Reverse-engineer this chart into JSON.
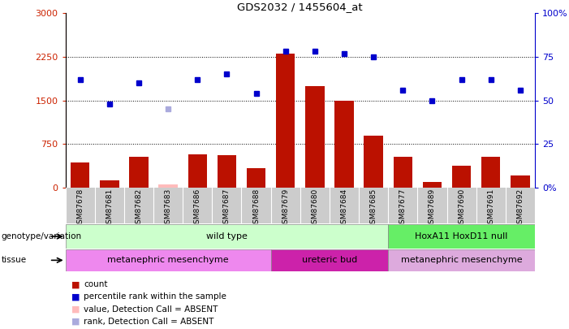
{
  "title": "GDS2032 / 1455604_at",
  "samples": [
    "GSM87678",
    "GSM87681",
    "GSM87682",
    "GSM87683",
    "GSM87686",
    "GSM87687",
    "GSM87688",
    "GSM87679",
    "GSM87680",
    "GSM87684",
    "GSM87685",
    "GSM87677",
    "GSM87689",
    "GSM87690",
    "GSM87691",
    "GSM87692"
  ],
  "counts": [
    430,
    130,
    530,
    60,
    570,
    560,
    330,
    2300,
    1750,
    1490,
    890,
    530,
    100,
    370,
    530,
    210
  ],
  "counts_absent": [
    false,
    false,
    false,
    true,
    false,
    false,
    false,
    false,
    false,
    false,
    false,
    false,
    false,
    false,
    false,
    false
  ],
  "ranks": [
    62,
    48,
    60,
    45,
    62,
    65,
    54,
    78,
    78,
    77,
    75,
    56,
    50,
    62,
    62,
    56
  ],
  "ranks_absent": [
    false,
    false,
    false,
    true,
    false,
    false,
    false,
    false,
    false,
    false,
    false,
    false,
    false,
    false,
    false,
    false
  ],
  "ylim_left": [
    0,
    3000
  ],
  "ylim_right": [
    0,
    100
  ],
  "yticks_left": [
    0,
    750,
    1500,
    2250,
    3000
  ],
  "yticks_right": [
    0,
    25,
    50,
    75,
    100
  ],
  "yticklabels_left": [
    "0",
    "750",
    "1500",
    "2250",
    "3000"
  ],
  "yticklabels_right": [
    "0%",
    "25",
    "50",
    "75",
    "100%"
  ],
  "bar_color": "#bb1100",
  "bar_absent_color": "#ffbbbb",
  "dot_color": "#0000cc",
  "dot_absent_color": "#aaaadd",
  "grid_color": "#000000",
  "col_sep_color": "#ffffff",
  "names_bg": "#cccccc",
  "plot_bg": "#ffffff",
  "genotype_groups": [
    {
      "label": "wild type",
      "start": 0,
      "end": 11,
      "color": "#ccffcc"
    },
    {
      "label": "HoxA11 HoxD11 null",
      "start": 11,
      "end": 16,
      "color": "#66ee66"
    }
  ],
  "tissue_groups": [
    {
      "label": "metanephric mesenchyme",
      "start": 0,
      "end": 7,
      "color": "#ee88ee"
    },
    {
      "label": "ureteric bud",
      "start": 7,
      "end": 11,
      "color": "#dd44bb"
    },
    {
      "label": "metanephric mesenchyme",
      "start": 11,
      "end": 16,
      "color": "#ddaadd"
    }
  ],
  "legend_items": [
    {
      "color": "#bb1100",
      "marker": "s",
      "label": "count"
    },
    {
      "color": "#0000cc",
      "marker": "s",
      "label": "percentile rank within the sample"
    },
    {
      "color": "#ffbbbb",
      "marker": "s",
      "label": "value, Detection Call = ABSENT"
    },
    {
      "color": "#aaaadd",
      "marker": "s",
      "label": "rank, Detection Call = ABSENT"
    }
  ],
  "fig_width": 7.01,
  "fig_height": 4.05,
  "fig_dpi": 100
}
